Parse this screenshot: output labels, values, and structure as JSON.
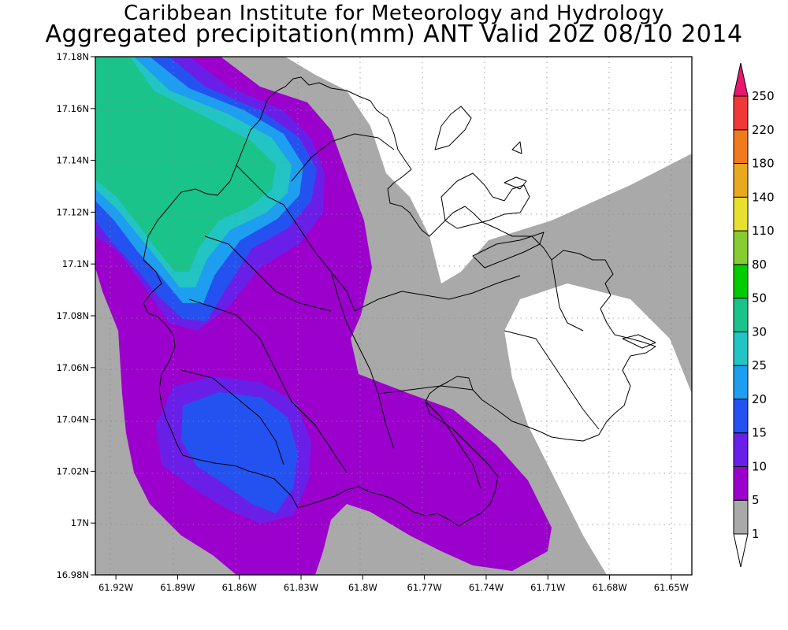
{
  "titles": {
    "line1": "Caribbean Institute for Meteorology and Hydrology",
    "line2": "Aggregated precipitation(mm) ANT Valid 20Z 08/10 2014"
  },
  "map": {
    "region": "Antigua",
    "lat_range": [
      16.98,
      17.18
    ],
    "lon_range": [
      -61.93,
      -61.64
    ],
    "lat_ticks": [
      {
        "value": 17.18,
        "label": "17.18N"
      },
      {
        "value": 17.16,
        "label": "17.16N"
      },
      {
        "value": 17.14,
        "label": "17.14N"
      },
      {
        "value": 17.12,
        "label": "17.12N"
      },
      {
        "value": 17.1,
        "label": "17.1N"
      },
      {
        "value": 17.08,
        "label": "17.08N"
      },
      {
        "value": 17.06,
        "label": "17.06N"
      },
      {
        "value": 17.04,
        "label": "17.04N"
      },
      {
        "value": 17.02,
        "label": "17.02N"
      },
      {
        "value": 17.0,
        "label": "17N"
      },
      {
        "value": 16.98,
        "label": "16.98N"
      }
    ],
    "lon_ticks": [
      {
        "value": -61.92,
        "label": "61.92W"
      },
      {
        "value": -61.89,
        "label": "61.89W"
      },
      {
        "value": -61.86,
        "label": "61.86W"
      },
      {
        "value": -61.83,
        "label": "61.83W"
      },
      {
        "value": -61.8,
        "label": "61.8W"
      },
      {
        "value": -61.77,
        "label": "61.77W"
      },
      {
        "value": -61.74,
        "label": "61.74W"
      },
      {
        "value": -61.71,
        "label": "61.71W"
      },
      {
        "value": -61.68,
        "label": "61.68W"
      },
      {
        "value": -61.65,
        "label": "61.65W"
      }
    ],
    "grid": true
  },
  "legend": {
    "boundary_labels": [
      "1",
      "5",
      "10",
      "15",
      "20",
      "25",
      "30",
      "50",
      "80",
      "110",
      "140",
      "180",
      "220",
      "250"
    ],
    "colors": [
      "#ffffff",
      "#a9a9a9",
      "#9b00cc",
      "#6a1fe8",
      "#2452f0",
      "#1e9ef0",
      "#22c4c4",
      "#19c38a",
      "#00cc00",
      "#88cc33",
      "#e8e030",
      "#e8a820",
      "#f07a1e",
      "#f03838",
      "#e8186e"
    ]
  }
}
